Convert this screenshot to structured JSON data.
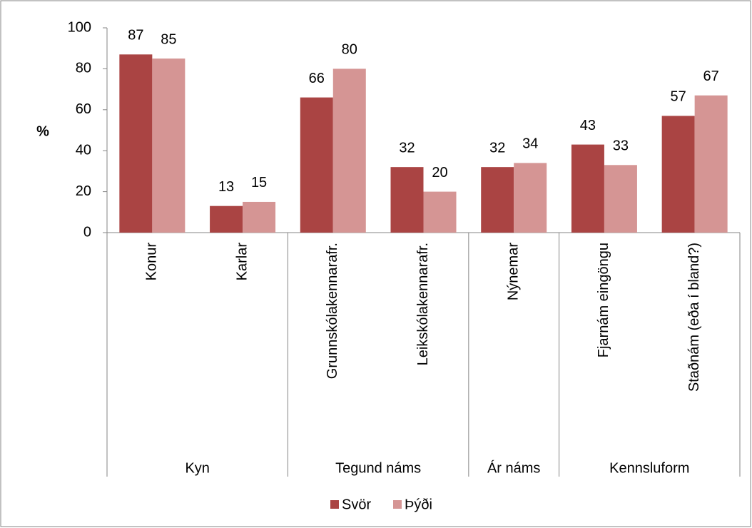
{
  "chart_data": {
    "type": "bar",
    "y_label": "%",
    "groups": [
      {
        "name": "Kyn",
        "categories": [
          "Konur",
          "Karlar"
        ]
      },
      {
        "name": "Tegund náms",
        "categories": [
          "Grunnskólakennarafr.",
          "Leikskólakennarafr."
        ]
      },
      {
        "name": "Ár náms",
        "categories": [
          "Nýnemar"
        ]
      },
      {
        "name": "Kennsluform",
        "categories": [
          "Fjarnám eingöngu",
          "Staðnám (eða í bland?)"
        ]
      }
    ],
    "series": [
      {
        "name": "Svör",
        "color": "#aa4443",
        "values": [
          87,
          13,
          66,
          32,
          32,
          43,
          57
        ]
      },
      {
        "name": "Þýði",
        "color": "#d59594",
        "values": [
          85,
          15,
          80,
          20,
          34,
          33,
          67
        ]
      }
    ],
    "ylim": [
      0,
      100
    ],
    "yticks": [
      0,
      20,
      40,
      60,
      80,
      100
    ],
    "legend": "bottom"
  }
}
